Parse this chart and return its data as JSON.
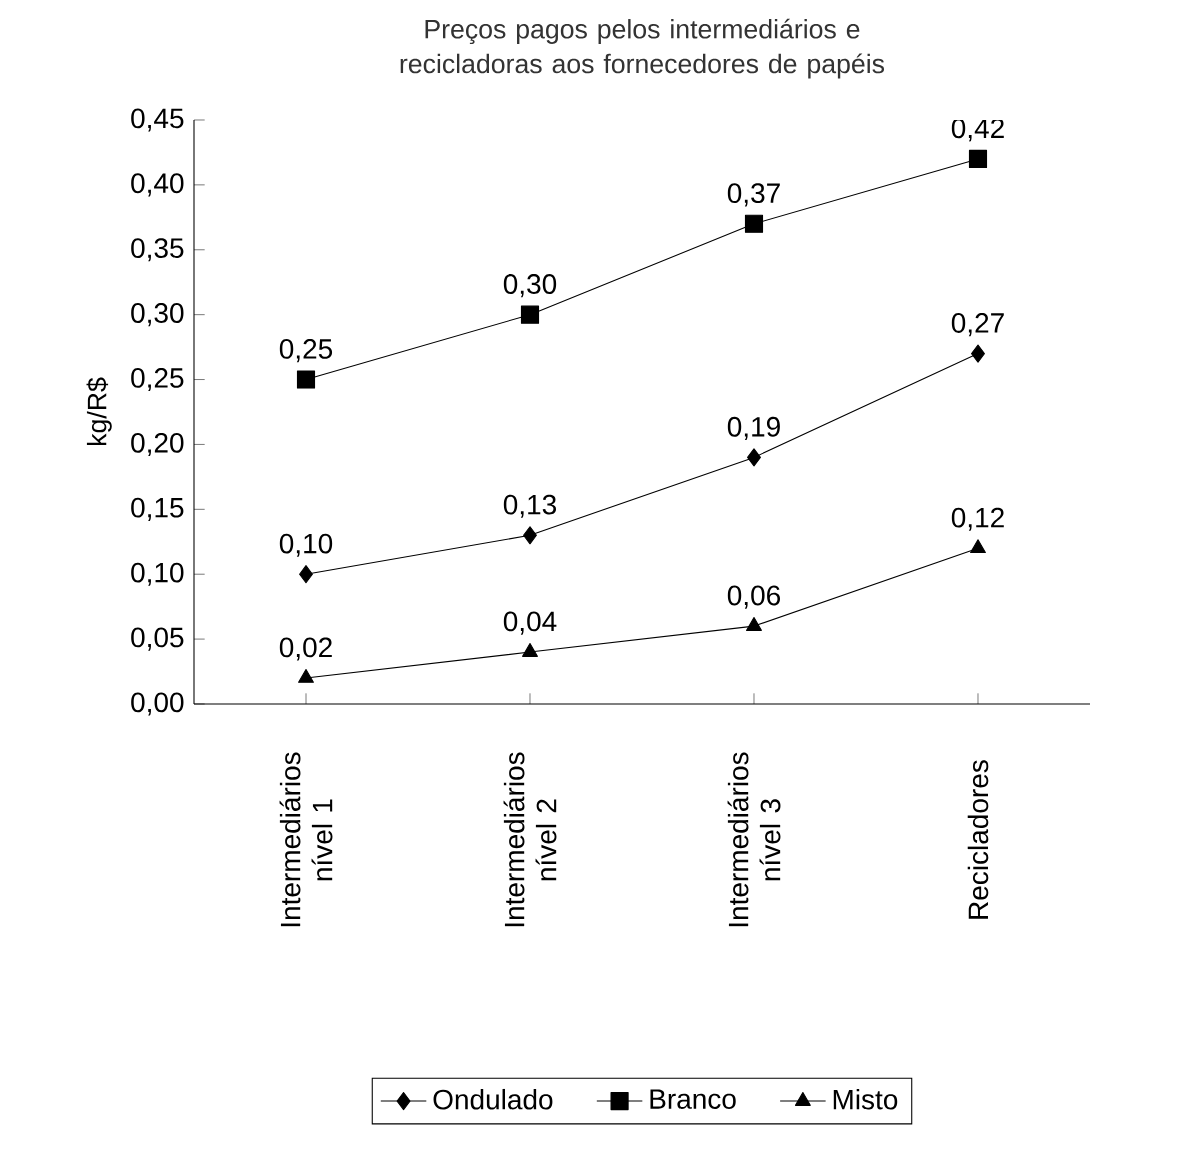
{
  "chart_data": {
    "type": "line",
    "title": "Preços pagos pelos intermediários e recicladoras aos fornecedores de papéis",
    "ylabel": "kg/R$",
    "categories": [
      "Intermediários nível 1",
      "Intermediários nível 2",
      "Intermediários nível 3",
      "Recicladores"
    ],
    "series": [
      {
        "name": "Ondulado",
        "color": "#000000",
        "marker": "diamond",
        "values": [
          0.1,
          0.13,
          0.19,
          0.27
        ],
        "value_labels": [
          "0,10",
          "0,13",
          "0,19",
          "0,27"
        ]
      },
      {
        "name": "Branco",
        "color": "#000000",
        "marker": "square",
        "values": [
          0.25,
          0.3,
          0.37,
          0.42
        ],
        "value_labels": [
          "0,25",
          "0,30",
          "0,37",
          "0,42"
        ]
      },
      {
        "name": "Misto",
        "color": "#000000",
        "marker": "triangle",
        "values": [
          0.02,
          0.04,
          0.06,
          0.12
        ],
        "value_labels": [
          "0,02",
          "0,04",
          "0,06",
          "0,12"
        ]
      }
    ],
    "ylim": [
      0,
      0.45
    ],
    "yticks": [
      {
        "value": 0,
        "label": "0,00"
      },
      {
        "value": 0.05,
        "label": "0,05"
      },
      {
        "value": 0.1,
        "label": "0,10"
      },
      {
        "value": 0.15,
        "label": "0,15"
      },
      {
        "value": 0.2,
        "label": "0,20"
      },
      {
        "value": 0.25,
        "label": "0,25"
      },
      {
        "value": 0.3,
        "label": "0,30"
      },
      {
        "value": 0.35,
        "label": "0,35"
      },
      {
        "value": 0.4,
        "label": "0,40"
      },
      {
        "value": 0.45,
        "label": "0,45"
      }
    ],
    "grid": false,
    "legend": "bottom",
    "line_style": "solid"
  }
}
